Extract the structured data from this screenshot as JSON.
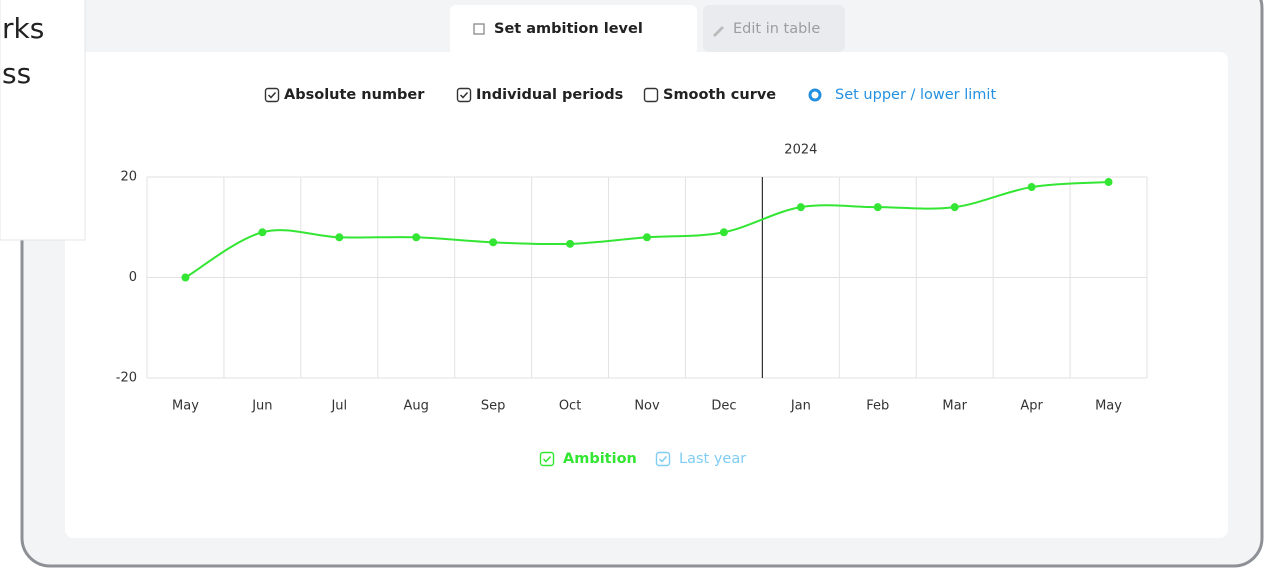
{
  "background_text": [
    "rks",
    "ss"
  ],
  "tabs": [
    {
      "label": "Set ambition level",
      "active": true
    },
    {
      "label": "Edit in table",
      "active": false
    }
  ],
  "options": [
    {
      "label": "Absolute number",
      "checked": true
    },
    {
      "label": "Individual periods",
      "checked": true
    },
    {
      "label": "Smooth curve",
      "checked": false
    }
  ],
  "limit_link": "Set upper / lower limit",
  "chart_data": {
    "type": "line",
    "smooth": true,
    "annotation": "2024",
    "categories": [
      "May",
      "Jun",
      "Jul",
      "Aug",
      "Sep",
      "Oct",
      "Nov",
      "Dec",
      "Jan",
      "Feb",
      "Mar",
      "Apr",
      "May"
    ],
    "series": [
      {
        "name": "Ambition",
        "color": "#33e633",
        "values": [
          0,
          9,
          8,
          8,
          7,
          6.7,
          8,
          9,
          14,
          14,
          14,
          18,
          19
        ]
      }
    ],
    "inactive_legend": {
      "name": "Last year",
      "color": "#7fcdf2"
    },
    "ylim": [
      -20,
      20
    ],
    "yticks": [
      -20,
      0,
      20
    ],
    "grid": true
  }
}
